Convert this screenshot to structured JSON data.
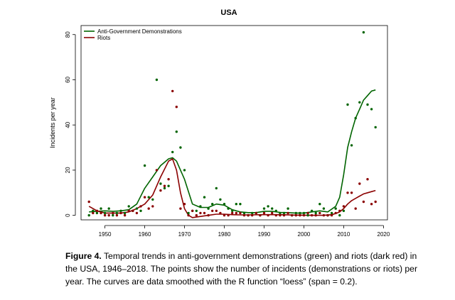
{
  "chart_data": {
    "type": "scatter",
    "title": "USA",
    "xlabel": "",
    "ylabel": "Incidents per year",
    "xlim": [
      1944,
      2021
    ],
    "ylim": [
      -2,
      84
    ],
    "xticks": [
      1950,
      1960,
      1970,
      1980,
      1990,
      2000,
      2010,
      2020
    ],
    "yticks": [
      0,
      20,
      40,
      60,
      80
    ],
    "legend_position": "top-left",
    "grid": false,
    "series": [
      {
        "name": "Anti-Government Demonstrations",
        "color": "#006400",
        "points": [
          [
            1946,
            0
          ],
          [
            1947,
            2
          ],
          [
            1948,
            1
          ],
          [
            1949,
            3
          ],
          [
            1950,
            1
          ],
          [
            1951,
            3
          ],
          [
            1952,
            0
          ],
          [
            1953,
            1
          ],
          [
            1954,
            2
          ],
          [
            1955,
            1
          ],
          [
            1956,
            4
          ],
          [
            1957,
            2
          ],
          [
            1958,
            3
          ],
          [
            1959,
            2
          ],
          [
            1960,
            22
          ],
          [
            1961,
            8
          ],
          [
            1962,
            7
          ],
          [
            1963,
            60
          ],
          [
            1964,
            14
          ],
          [
            1965,
            12
          ],
          [
            1966,
            13
          ],
          [
            1967,
            28
          ],
          [
            1968,
            37
          ],
          [
            1969,
            30
          ],
          [
            1970,
            20
          ],
          [
            1971,
            1
          ],
          [
            1972,
            2
          ],
          [
            1973,
            2
          ],
          [
            1974,
            4
          ],
          [
            1975,
            8
          ],
          [
            1976,
            3
          ],
          [
            1977,
            5
          ],
          [
            1978,
            12
          ],
          [
            1979,
            7
          ],
          [
            1980,
            5
          ],
          [
            1981,
            3
          ],
          [
            1982,
            2
          ],
          [
            1983,
            5
          ],
          [
            1984,
            5
          ],
          [
            1985,
            1
          ],
          [
            1986,
            0
          ],
          [
            1987,
            1
          ],
          [
            1988,
            1
          ],
          [
            1989,
            0
          ],
          [
            1990,
            3
          ],
          [
            1991,
            4
          ],
          [
            1992,
            3
          ],
          [
            1993,
            2
          ],
          [
            1994,
            1
          ],
          [
            1995,
            1
          ],
          [
            1996,
            3
          ],
          [
            1997,
            0
          ],
          [
            1998,
            1
          ],
          [
            1999,
            1
          ],
          [
            2000,
            1
          ],
          [
            2001,
            0
          ],
          [
            2002,
            2
          ],
          [
            2003,
            1
          ],
          [
            2004,
            5
          ],
          [
            2005,
            3
          ],
          [
            2006,
            0
          ],
          [
            2007,
            1
          ],
          [
            2008,
            3
          ],
          [
            2009,
            0
          ],
          [
            2010,
            2
          ],
          [
            2011,
            49
          ],
          [
            2012,
            31
          ],
          [
            2013,
            43
          ],
          [
            2014,
            50
          ],
          [
            2015,
            81
          ],
          [
            2016,
            49
          ],
          [
            2017,
            47
          ],
          [
            2018,
            39
          ]
        ],
        "smooth": [
          [
            1946,
            1.5
          ],
          [
            1948,
            1.8
          ],
          [
            1950,
            2
          ],
          [
            1952,
            1.8
          ],
          [
            1954,
            2
          ],
          [
            1956,
            2.5
          ],
          [
            1958,
            5
          ],
          [
            1960,
            12
          ],
          [
            1962,
            17
          ],
          [
            1964,
            22
          ],
          [
            1966,
            25
          ],
          [
            1967,
            25.5
          ],
          [
            1968,
            24
          ],
          [
            1970,
            16
          ],
          [
            1972,
            5
          ],
          [
            1974,
            3.5
          ],
          [
            1976,
            3.5
          ],
          [
            1978,
            5
          ],
          [
            1980,
            4.5
          ],
          [
            1982,
            2.5
          ],
          [
            1984,
            1.5
          ],
          [
            1986,
            1.2
          ],
          [
            1988,
            1.2
          ],
          [
            1990,
            1.8
          ],
          [
            1992,
            1.8
          ],
          [
            1994,
            1.3
          ],
          [
            1996,
            1.2
          ],
          [
            1998,
            1
          ],
          [
            2000,
            1
          ],
          [
            2002,
            1.5
          ],
          [
            2004,
            2
          ],
          [
            2006,
            1.5
          ],
          [
            2008,
            4
          ],
          [
            2009,
            8
          ],
          [
            2010,
            18
          ],
          [
            2011,
            30
          ],
          [
            2012,
            37
          ],
          [
            2013,
            43
          ],
          [
            2014,
            47
          ],
          [
            2015,
            51
          ],
          [
            2016,
            53
          ],
          [
            2017,
            55
          ],
          [
            2018,
            55.5
          ]
        ]
      },
      {
        "name": "Riots",
        "color": "#8b0000",
        "points": [
          [
            1946,
            6
          ],
          [
            1947,
            1
          ],
          [
            1948,
            2
          ],
          [
            1949,
            1
          ],
          [
            1950,
            0
          ],
          [
            1951,
            0
          ],
          [
            1952,
            1
          ],
          [
            1953,
            0
          ],
          [
            1954,
            1
          ],
          [
            1955,
            0
          ],
          [
            1956,
            2
          ],
          [
            1957,
            2
          ],
          [
            1958,
            1
          ],
          [
            1959,
            4
          ],
          [
            1960,
            8
          ],
          [
            1961,
            3
          ],
          [
            1962,
            4
          ],
          [
            1963,
            20
          ],
          [
            1964,
            11
          ],
          [
            1965,
            13
          ],
          [
            1966,
            16
          ],
          [
            1967,
            55
          ],
          [
            1968,
            48
          ],
          [
            1969,
            3
          ],
          [
            1970,
            5
          ],
          [
            1971,
            0
          ],
          [
            1972,
            2
          ],
          [
            1973,
            0
          ],
          [
            1974,
            1
          ],
          [
            1975,
            1
          ],
          [
            1976,
            0
          ],
          [
            1977,
            2
          ],
          [
            1978,
            2
          ],
          [
            1979,
            1
          ],
          [
            1980,
            0
          ],
          [
            1981,
            0
          ],
          [
            1982,
            1
          ],
          [
            1983,
            1
          ],
          [
            1984,
            1
          ],
          [
            1985,
            0
          ],
          [
            1986,
            0
          ],
          [
            1987,
            0
          ],
          [
            1988,
            1
          ],
          [
            1989,
            0
          ],
          [
            1990,
            1
          ],
          [
            1991,
            0
          ],
          [
            1992,
            1
          ],
          [
            1993,
            0
          ],
          [
            1994,
            0
          ],
          [
            1995,
            0
          ],
          [
            1996,
            1
          ],
          [
            1997,
            0
          ],
          [
            1998,
            0
          ],
          [
            1999,
            0
          ],
          [
            2000,
            0
          ],
          [
            2001,
            1
          ],
          [
            2002,
            0
          ],
          [
            2003,
            0
          ],
          [
            2004,
            1
          ],
          [
            2005,
            0
          ],
          [
            2006,
            0
          ],
          [
            2007,
            0
          ],
          [
            2008,
            1
          ],
          [
            2009,
            2
          ],
          [
            2010,
            4
          ],
          [
            2011,
            10
          ],
          [
            2012,
            10
          ],
          [
            2013,
            3
          ],
          [
            2014,
            14
          ],
          [
            2015,
            6
          ],
          [
            2016,
            16
          ],
          [
            2017,
            5
          ],
          [
            2018,
            6
          ]
        ],
        "smooth": [
          [
            1946,
            4
          ],
          [
            1947,
            3
          ],
          [
            1948,
            2
          ],
          [
            1950,
            1
          ],
          [
            1952,
            1
          ],
          [
            1954,
            1
          ],
          [
            1956,
            1.5
          ],
          [
            1958,
            3
          ],
          [
            1960,
            5
          ],
          [
            1962,
            9
          ],
          [
            1964,
            17
          ],
          [
            1966,
            24
          ],
          [
            1967,
            25
          ],
          [
            1968,
            20
          ],
          [
            1969,
            10
          ],
          [
            1970,
            3
          ],
          [
            1971,
            0
          ],
          [
            1972,
            -1
          ],
          [
            1974,
            -0.5
          ],
          [
            1976,
            0
          ],
          [
            1978,
            0.5
          ],
          [
            1980,
            0.5
          ],
          [
            1982,
            0.3
          ],
          [
            1984,
            0.2
          ],
          [
            1986,
            0.2
          ],
          [
            1990,
            0.3
          ],
          [
            1994,
            0.3
          ],
          [
            1998,
            0.1
          ],
          [
            2002,
            0
          ],
          [
            2005,
            0
          ],
          [
            2007,
            0.3
          ],
          [
            2008,
            0.8
          ],
          [
            2009,
            1.5
          ],
          [
            2010,
            3
          ],
          [
            2011,
            5
          ],
          [
            2012,
            6.5
          ],
          [
            2013,
            7.5
          ],
          [
            2014,
            8.5
          ],
          [
            2015,
            9.5
          ],
          [
            2016,
            10
          ],
          [
            2017,
            10.5
          ],
          [
            2018,
            11
          ]
        ]
      }
    ]
  },
  "caption": {
    "label": "Figure 4.",
    "text": " Temporal trends in anti-government demonstrations (green) and riots (dark red) in the USA, 1946–2018. The points show the number of incidents (demonstrations or riots) per year. The curves are data smoothed with the R function “loess” (span = 0.2)."
  }
}
